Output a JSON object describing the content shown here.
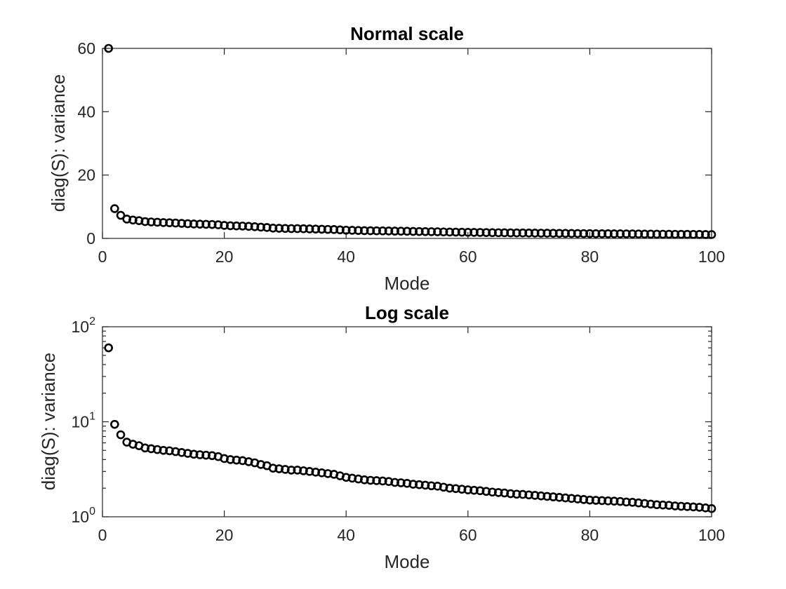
{
  "chart_data": [
    {
      "type": "scatter",
      "title": "Normal scale",
      "xlabel": "Mode",
      "ylabel": "diag(S): variance",
      "xlim": [
        0,
        100
      ],
      "ylim": [
        0,
        60
      ],
      "yscale": "linear",
      "xticks": [
        "0",
        "20",
        "40",
        "60",
        "80",
        "100"
      ],
      "yticks": [
        "0",
        "20",
        "40",
        "60"
      ],
      "marker": "circle",
      "grid": false,
      "color": "#000000"
    },
    {
      "type": "scatter",
      "title": "Log scale",
      "xlabel": "Mode",
      "ylabel": "diag(S): variance",
      "xlim": [
        0,
        100
      ],
      "ylim": [
        1,
        100
      ],
      "yscale": "log",
      "xticks": [
        "0",
        "20",
        "40",
        "60",
        "80",
        "100"
      ],
      "yticks": [
        {
          "base": "10",
          "exp": "0"
        },
        {
          "base": "10",
          "exp": "1"
        },
        {
          "base": "10",
          "exp": "2"
        }
      ],
      "marker": "circle",
      "grid": false,
      "color": "#000000"
    }
  ],
  "series": {
    "x": [
      1,
      2,
      3,
      4,
      5,
      6,
      7,
      8,
      9,
      10,
      11,
      12,
      13,
      14,
      15,
      16,
      17,
      18,
      19,
      20,
      21,
      22,
      23,
      24,
      25,
      26,
      27,
      28,
      29,
      30,
      31,
      32,
      33,
      34,
      35,
      36,
      37,
      38,
      39,
      40,
      41,
      42,
      43,
      44,
      45,
      46,
      47,
      48,
      49,
      50,
      51,
      52,
      53,
      54,
      55,
      56,
      57,
      58,
      59,
      60,
      61,
      62,
      63,
      64,
      65,
      66,
      67,
      68,
      69,
      70,
      71,
      72,
      73,
      74,
      75,
      76,
      77,
      78,
      79,
      80,
      81,
      82,
      83,
      84,
      85,
      86,
      87,
      88,
      89,
      90,
      91,
      92,
      93,
      94,
      95,
      96,
      97,
      98,
      99,
      100
    ],
    "y": [
      60,
      9.4,
      7.3,
      6.1,
      5.8,
      5.6,
      5.3,
      5.2,
      5.1,
      5.0,
      4.95,
      4.85,
      4.75,
      4.65,
      4.55,
      4.5,
      4.45,
      4.4,
      4.3,
      4.1,
      4.0,
      3.95,
      3.9,
      3.8,
      3.7,
      3.55,
      3.45,
      3.25,
      3.2,
      3.15,
      3.1,
      3.1,
      3.05,
      3.0,
      2.95,
      2.9,
      2.85,
      2.8,
      2.7,
      2.6,
      2.55,
      2.5,
      2.45,
      2.42,
      2.4,
      2.38,
      2.35,
      2.3,
      2.28,
      2.25,
      2.2,
      2.18,
      2.15,
      2.12,
      2.1,
      2.05,
      2.0,
      1.98,
      1.95,
      1.92,
      1.9,
      1.88,
      1.85,
      1.82,
      1.8,
      1.78,
      1.75,
      1.73,
      1.72,
      1.7,
      1.68,
      1.66,
      1.64,
      1.62,
      1.6,
      1.58,
      1.56,
      1.54,
      1.52,
      1.5,
      1.49,
      1.48,
      1.47,
      1.46,
      1.45,
      1.43,
      1.42,
      1.4,
      1.38,
      1.36,
      1.34,
      1.33,
      1.32,
      1.3,
      1.29,
      1.28,
      1.27,
      1.26,
      1.24,
      1.22
    ]
  }
}
